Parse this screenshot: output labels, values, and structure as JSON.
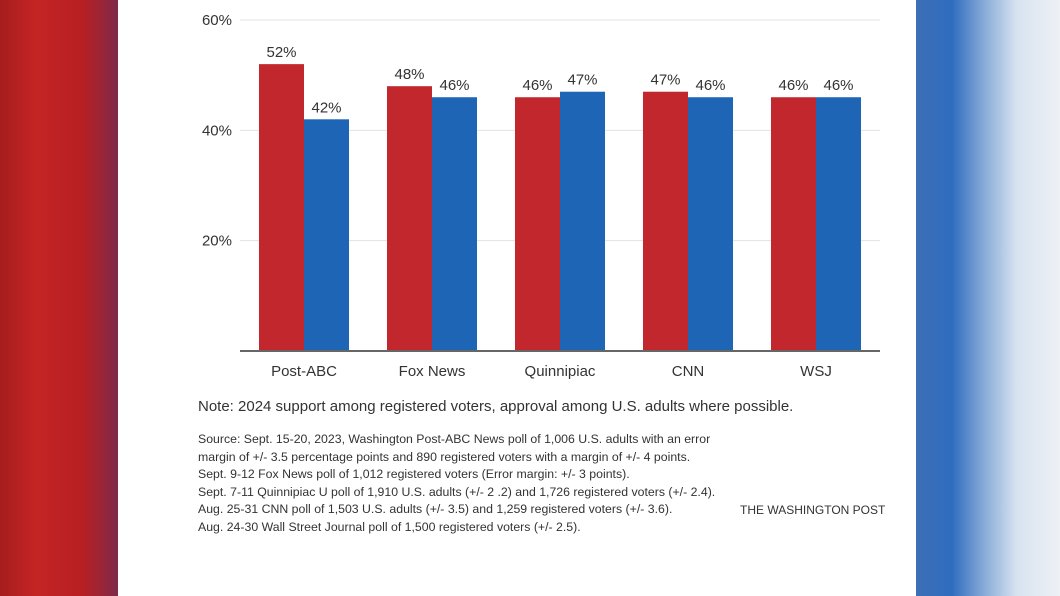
{
  "colors": {
    "red": "#c1272d",
    "blue": "#1f65b5",
    "grid": "#e3e3e3",
    "axis": "#666666"
  },
  "chart_data": {
    "type": "bar",
    "categories": [
      "Post-ABC",
      "Fox News",
      "Quinnipiac",
      "CNN",
      "WSJ"
    ],
    "series": [
      {
        "color": "#c1272d",
        "values": [
          52,
          48,
          46,
          47,
          46
        ]
      },
      {
        "color": "#1f65b5",
        "values": [
          42,
          46,
          47,
          46,
          46
        ]
      }
    ],
    "y_ticks": [
      "20%",
      "40%",
      "60%"
    ],
    "ylim": [
      0,
      60
    ],
    "value_suffix": "%",
    "grid": true
  },
  "note": "Note: 2024 support among registered voters, approval among U.S. adults where possible.",
  "source_lines": [
    "Source: Sept. 15-20, 2023, Washington Post-ABC News poll of 1,006 U.S. adults with an error margin of +/- 3.5 percentage points and 890 registered voters with a margin of +/- 4 points.",
    "Sept. 9-12 Fox News poll of 1,012 registered voters (Error margin: +/- 3 points).",
    "Sept. 7-11 Quinnipiac U poll of 1,910 U.S. adults (+/- 2 .2) and 1,726 registered voters (+/- 2.4).",
    "Aug. 25-31 CNN poll of 1,503 U.S. adults (+/- 3.5) and 1,259 registered voters (+/- 3.6).",
    "Aug. 24-30 Wall Street Journal poll of 1,500 registered voters (+/- 2.5)."
  ],
  "credit": "THE WASHINGTON POST"
}
